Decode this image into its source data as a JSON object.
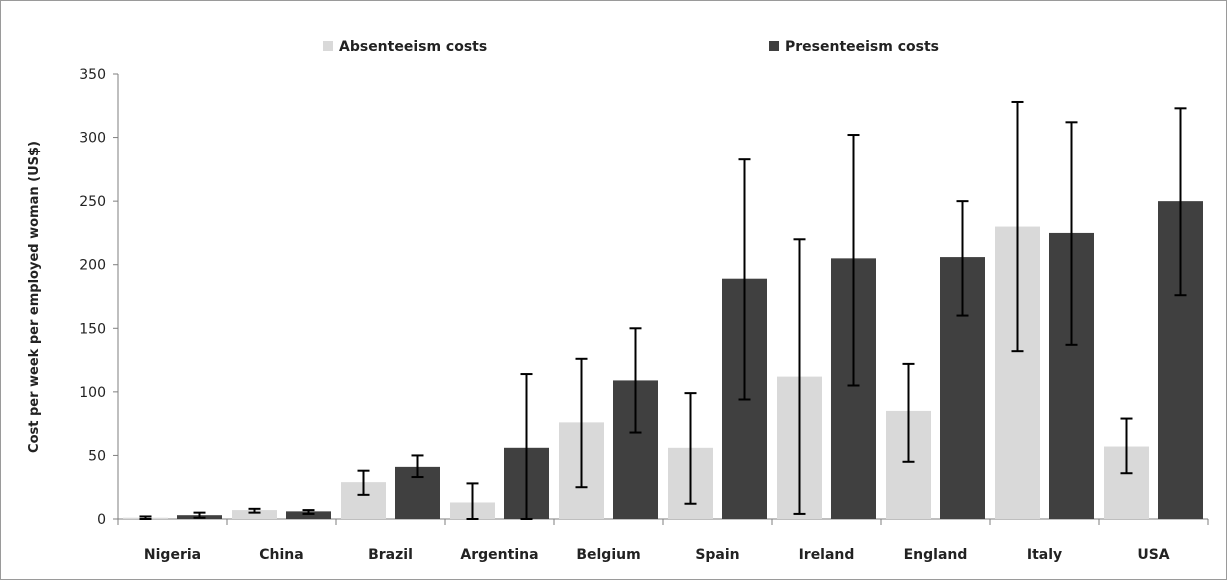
{
  "chart_data": {
    "type": "bar",
    "title": "",
    "xlabel": "",
    "ylabel": "Cost per week per employed woman (US$)",
    "ylim": [
      0,
      350
    ],
    "yticks": [
      0,
      50,
      100,
      150,
      200,
      250,
      300,
      350
    ],
    "grid": false,
    "legend_position": "top",
    "categories": [
      "Nigeria",
      "China",
      "Brazil",
      "Argentina",
      "Belgium",
      "Spain",
      "Ireland",
      "England",
      "Italy",
      "USA"
    ],
    "series": [
      {
        "name": "Absenteeism costs",
        "color": "#d9d9d9",
        "values": [
          1,
          7,
          29,
          13,
          76,
          56,
          112,
          85,
          230,
          57
        ],
        "error_low": [
          0,
          5,
          19,
          0,
          25,
          12,
          4,
          45,
          132,
          36
        ],
        "error_high": [
          2,
          8,
          38,
          28,
          126,
          99,
          220,
          122,
          328,
          79
        ]
      },
      {
        "name": "Presenteeism costs",
        "color": "#404040",
        "values": [
          3,
          6,
          41,
          56,
          109,
          189,
          205,
          206,
          225,
          250
        ],
        "error_low": [
          1,
          4,
          33,
          0,
          68,
          94,
          105,
          160,
          137,
          176
        ],
        "error_high": [
          5,
          7,
          50,
          114,
          150,
          283,
          302,
          250,
          312,
          323
        ]
      }
    ]
  }
}
